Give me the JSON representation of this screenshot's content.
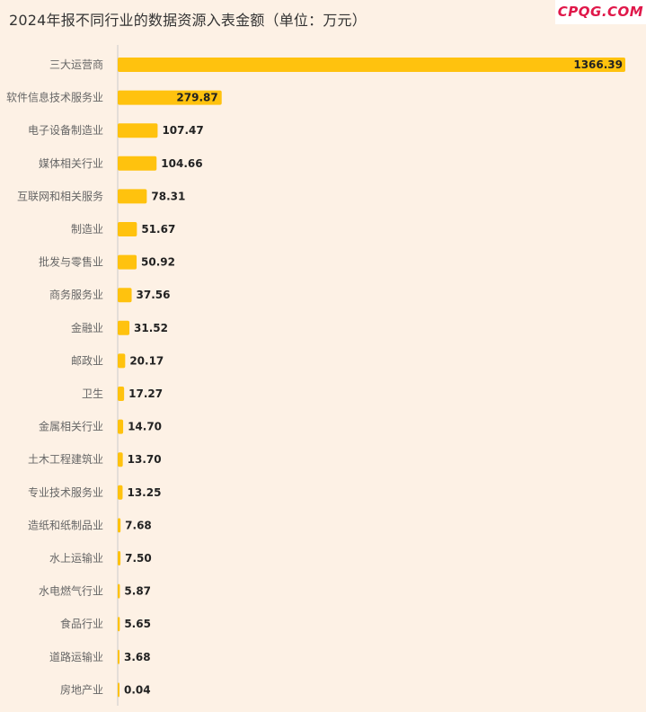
{
  "header": {
    "title": "2024年报不同行业的数据资源入表金额（单位：万元）",
    "logo_text": "CPQG.COM"
  },
  "colors": {
    "background": "#fdf1e5",
    "bar": "#ffc20e",
    "axis": "#cccccc"
  },
  "chart_data": {
    "type": "bar",
    "orientation": "horizontal",
    "title": "2024年报不同行业的数据资源入表金额（单位：万元）",
    "unit": "万元",
    "categories": [
      "三大运营商",
      "软件信息技术服务业",
      "电子设备制造业",
      "媒体相关行业",
      "互联网和相关服务",
      "制造业",
      "批发与零售业",
      "商务服务业",
      "金融业",
      "邮政业",
      "卫生",
      "金属相关行业",
      "土木工程建筑业",
      "专业技术服务业",
      "造纸和纸制品业",
      "水上运输业",
      "水电燃气行业",
      "食品行业",
      "道路运输业",
      "房地产业"
    ],
    "values": [
      1366.39,
      279.87,
      107.47,
      104.66,
      78.31,
      51.67,
      50.92,
      37.56,
      31.52,
      20.17,
      17.27,
      14.7,
      13.7,
      13.25,
      7.68,
      7.5,
      5.87,
      5.65,
      3.68,
      0.04
    ],
    "value_labels": [
      "1366.39",
      "279.87",
      "107.47",
      "104.66",
      "78.31",
      "51.67",
      "50.92",
      "37.56",
      "31.52",
      "20.17",
      "17.27",
      "14.70",
      "13.70",
      "13.25",
      "7.68",
      "7.50",
      "5.87",
      "5.65",
      "3.68",
      "0.04"
    ],
    "xlim": [
      0,
      1366.39
    ],
    "grid": false,
    "legend": "none"
  }
}
